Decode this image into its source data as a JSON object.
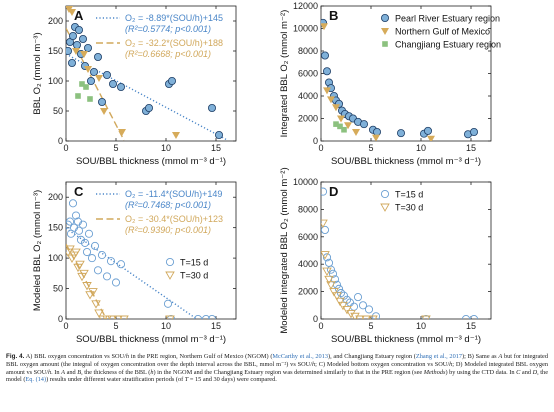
{
  "colors": {
    "pre": "#7fb0d8",
    "pre_edge": "#1e3e66",
    "ngom": "#d6ab5a",
    "cj": "#8cc17f",
    "t15": "#6b9fd2",
    "t30": "#d1a85c",
    "fit_dotted": "#4a86c8",
    "fit_dashed": "#d1a85c"
  },
  "chart_data": [
    {
      "panel": "A",
      "type": "scatter",
      "xlabel": "SOU/BBL thickness (mmol m⁻³ d⁻¹)",
      "ylabel": "BBL O₂ (mmol m⁻³)",
      "xlim": [
        0,
        17
      ],
      "ylim": [
        0,
        225
      ],
      "xticks": [
        "0",
        "5",
        "10",
        "15"
      ],
      "yticks": [
        "0",
        "50",
        "100",
        "150",
        "200"
      ],
      "annotations": [
        {
          "line1": "O₂ = -8.89*(SOU/h)+145",
          "line2": "(R²=0.5774; p<0.001)",
          "style": "dotted"
        },
        {
          "line1": "O₂ = -32.2*(SOU/h)+188",
          "line2": "(R²=0.6668; p<0.001)",
          "style": "dashed"
        }
      ],
      "fits": [
        {
          "style": "dotted",
          "slope": -8.89,
          "intercept": 145,
          "x_range": [
            0,
            16
          ]
        },
        {
          "style": "dashed",
          "slope": -32.2,
          "intercept": 188,
          "x_range": [
            0,
            5.8
          ]
        }
      ],
      "series": [
        {
          "name": "Pearl River Estuary region",
          "marker": "circle-filled",
          "x": [
            0.2,
            0.4,
            0.6,
            0.7,
            0.9,
            1.1,
            1.3,
            1.5,
            1.7,
            1.9,
            2.2,
            2.5,
            2.8,
            3.2,
            3.6,
            4.1,
            4.7,
            5.5,
            8.0,
            8.3,
            10.3,
            10.6,
            14.6,
            15.3
          ],
          "y": [
            150,
            165,
            130,
            175,
            190,
            160,
            185,
            145,
            170,
            125,
            155,
            100,
            115,
            140,
            65,
            110,
            95,
            90,
            50,
            55,
            95,
            100,
            55,
            10
          ]
        },
        {
          "name": "Northern Gulf of Mexico",
          "marker": "triangle-down",
          "x": [
            0.3,
            0.6,
            1.0,
            1.8,
            2.2,
            3.3,
            3.8,
            5.6,
            11.0
          ],
          "y": [
            220,
            215,
            150,
            145,
            120,
            105,
            50,
            15,
            10
          ]
        },
        {
          "name": "Changjiang Estuary region",
          "marker": "square",
          "x": [
            1.2,
            1.6,
            2.0,
            2.4
          ],
          "y": [
            75,
            95,
            90,
            70
          ]
        }
      ]
    },
    {
      "panel": "B",
      "type": "scatter",
      "xlabel": "SOU/BBL thickness (mmol m⁻³ d⁻¹)",
      "ylabel": "Integrated BBL O₂ (mmol m⁻²)",
      "xlim": [
        0,
        17
      ],
      "ylim": [
        0,
        12000
      ],
      "xticks": [
        "0",
        "5",
        "10",
        "15"
      ],
      "yticks": [
        "0",
        "2000",
        "4000",
        "6000",
        "8000",
        "10000",
        "12000"
      ],
      "legend": [
        "Pearl River Estuary region",
        "Northern Gulf of Mexico",
        "Changjiang Estuary region"
      ],
      "legend_position": "top-right",
      "series": [
        {
          "name": "Pearl River Estuary region",
          "marker": "circle-filled",
          "x": [
            0.2,
            0.4,
            0.6,
            0.8,
            1.0,
            1.3,
            1.5,
            1.8,
            2.1,
            2.4,
            2.8,
            3.2,
            3.7,
            4.3,
            5.2,
            5.6,
            8.0,
            10.3,
            10.7,
            14.7,
            15.3
          ],
          "y": [
            10500,
            7600,
            6200,
            5200,
            4700,
            4000,
            3600,
            3300,
            2700,
            2400,
            2200,
            2000,
            1700,
            1500,
            1000,
            800,
            700,
            650,
            900,
            600,
            800
          ]
        },
        {
          "name": "Northern Gulf of Mexico",
          "marker": "triangle-down",
          "x": [
            0.3,
            0.6,
            1.0,
            1.5,
            2.0,
            2.7,
            3.5,
            5.5,
            11.0
          ],
          "y": [
            10200,
            4500,
            3700,
            3000,
            2000,
            1400,
            800,
            300,
            200
          ]
        },
        {
          "name": "Changjiang Estuary region",
          "marker": "square",
          "x": [
            1.5,
            1.9,
            2.3
          ],
          "y": [
            1500,
            1300,
            1000
          ]
        }
      ]
    },
    {
      "panel": "C",
      "type": "scatter",
      "xlabel": "SOU/BBL thickness (mmol m⁻³ d⁻¹)",
      "ylabel": "Modeled BBL O₂ (mmol m⁻³)",
      "xlim": [
        0,
        17
      ],
      "ylim": [
        0,
        225
      ],
      "xticks": [
        "0",
        "5",
        "10",
        "15"
      ],
      "yticks": [
        "0",
        "50",
        "100",
        "150",
        "200"
      ],
      "legend": [
        "T=15 d",
        "T=30 d"
      ],
      "annotations": [
        {
          "line1": "O₂ = -11.4*(SOU/h)+149",
          "line2": "(R²=0.7468; p<0.001)",
          "style": "dotted"
        },
        {
          "line1": "O₂ = -30.4*(SOU/h)+123",
          "line2": "(R²=0.9390; p<0.001)",
          "style": "dashed"
        }
      ],
      "fits": [
        {
          "style": "dotted",
          "slope": -11.4,
          "intercept": 149,
          "x_range": [
            0,
            13
          ]
        },
        {
          "style": "dashed",
          "slope": -30.4,
          "intercept": 123,
          "x_range": [
            0,
            4.05
          ]
        }
      ],
      "series": [
        {
          "name": "T=15 d",
          "marker": "circle-open",
          "x": [
            0.2,
            0.4,
            0.5,
            0.7,
            0.8,
            1.0,
            1.2,
            1.3,
            1.5,
            1.7,
            1.9,
            2.1,
            2.3,
            2.6,
            2.9,
            3.2,
            3.6,
            4.1,
            4.5,
            5.0,
            5.5,
            10.2,
            10.5,
            13.2,
            14.0,
            14.6
          ],
          "y": [
            155,
            160,
            140,
            190,
            150,
            170,
            160,
            145,
            130,
            155,
            125,
            110,
            140,
            100,
            120,
            80,
            105,
            70,
            95,
            60,
            90,
            25,
            0,
            0,
            0,
            0
          ]
        },
        {
          "name": "T=30 d",
          "marker": "triangle-open",
          "x": [
            0.2,
            0.4,
            0.6,
            0.8,
            1.0,
            1.2,
            1.4,
            1.6,
            1.8,
            2.1,
            2.4,
            2.7,
            3.0,
            3.3,
            3.7,
            4.1,
            4.6,
            5.2,
            5.8,
            10.4
          ],
          "y": [
            110,
            115,
            100,
            105,
            110,
            85,
            90,
            70,
            75,
            55,
            40,
            45,
            25,
            10,
            0,
            0,
            0,
            0,
            0,
            0
          ]
        }
      ]
    },
    {
      "panel": "D",
      "type": "scatter",
      "xlabel": "SOU/BBL thickness (mmol m⁻³ d⁻¹)",
      "ylabel": "Modeled integrated BBL O₂ (mmol m⁻²)",
      "xlim": [
        0,
        17
      ],
      "ylim": [
        0,
        10000
      ],
      "xticks": [
        "0",
        "5",
        "10",
        "15"
      ],
      "yticks": [
        "0",
        "2000",
        "4000",
        "6000",
        "8000",
        "10000"
      ],
      "legend": [
        "T=15 d",
        "T=30 d"
      ],
      "legend_position": "top-right",
      "series": [
        {
          "name": "T=15 d",
          "marker": "circle-open",
          "x": [
            0.2,
            0.4,
            0.6,
            0.8,
            1.0,
            1.2,
            1.4,
            1.6,
            1.8,
            2.0,
            2.3,
            2.6,
            2.9,
            3.3,
            3.7,
            4.2,
            4.8,
            5.5,
            10.5,
            14.5,
            15.3
          ],
          "y": [
            9300,
            6500,
            4500,
            4100,
            3600,
            3300,
            2900,
            2500,
            2200,
            1900,
            1700,
            1400,
            1200,
            900,
            1600,
            1000,
            700,
            200,
            0,
            0,
            0
          ]
        },
        {
          "name": "T=30 d",
          "marker": "triangle-open",
          "x": [
            0.2,
            0.4,
            0.6,
            0.8,
            1.0,
            1.3,
            1.6,
            1.9,
            2.2,
            2.6,
            3.0,
            3.4,
            3.9,
            4.5,
            5.2,
            10.5
          ],
          "y": [
            7000,
            4700,
            3500,
            2900,
            2500,
            2000,
            1700,
            1300,
            1000,
            700,
            400,
            200,
            0,
            0,
            0,
            0
          ]
        }
      ]
    }
  ],
  "caption": {
    "figno": "Fig. 4.",
    "p1": " A) BBL oxygen concentration vs SOU/",
    "h1": "h",
    "p2": " in the PRE region, Northern Gulf of Mexico (NGOM) (",
    "ref1": "McCarthy et al., 2013",
    "p3": "), and Changjiang Estuary region (",
    "ref2": "Zhang et al., 2017",
    "p4": "); B) Same as ",
    "a1": "A",
    "p5": " but for integrated BBL oxygen amount (the integral of oxygen concentration over the depth interval across the BBL, mmol m⁻²) vs SOU/",
    "h2": "h",
    "p6": "; C) Modeled bottom oxygen concentration vs SOU/",
    "h3": "h",
    "p7": "; D) Modeled integrated BBL oxygen amount vs SOU/",
    "h4": "h",
    "p8": ". In ",
    "a2": "A",
    "p9": " and ",
    "b1": "B",
    "p10": ", the thickness of the BBL (",
    "h5": "h",
    "p11": ") in the NGOM and the Changjiang Estuary region was determined similarly to that in the PRE region (see ",
    "methods": "Methods",
    "p12": ") by using the CTD data. In ",
    "c1": "C",
    "p13": " and ",
    "d1": "D",
    "p14": ", the model (",
    "eq": "Eq. (14)",
    "p15": ") results under different water stratification periods (of ",
    "t": "T",
    "p16": " = 15 and 30 days) were compared."
  }
}
